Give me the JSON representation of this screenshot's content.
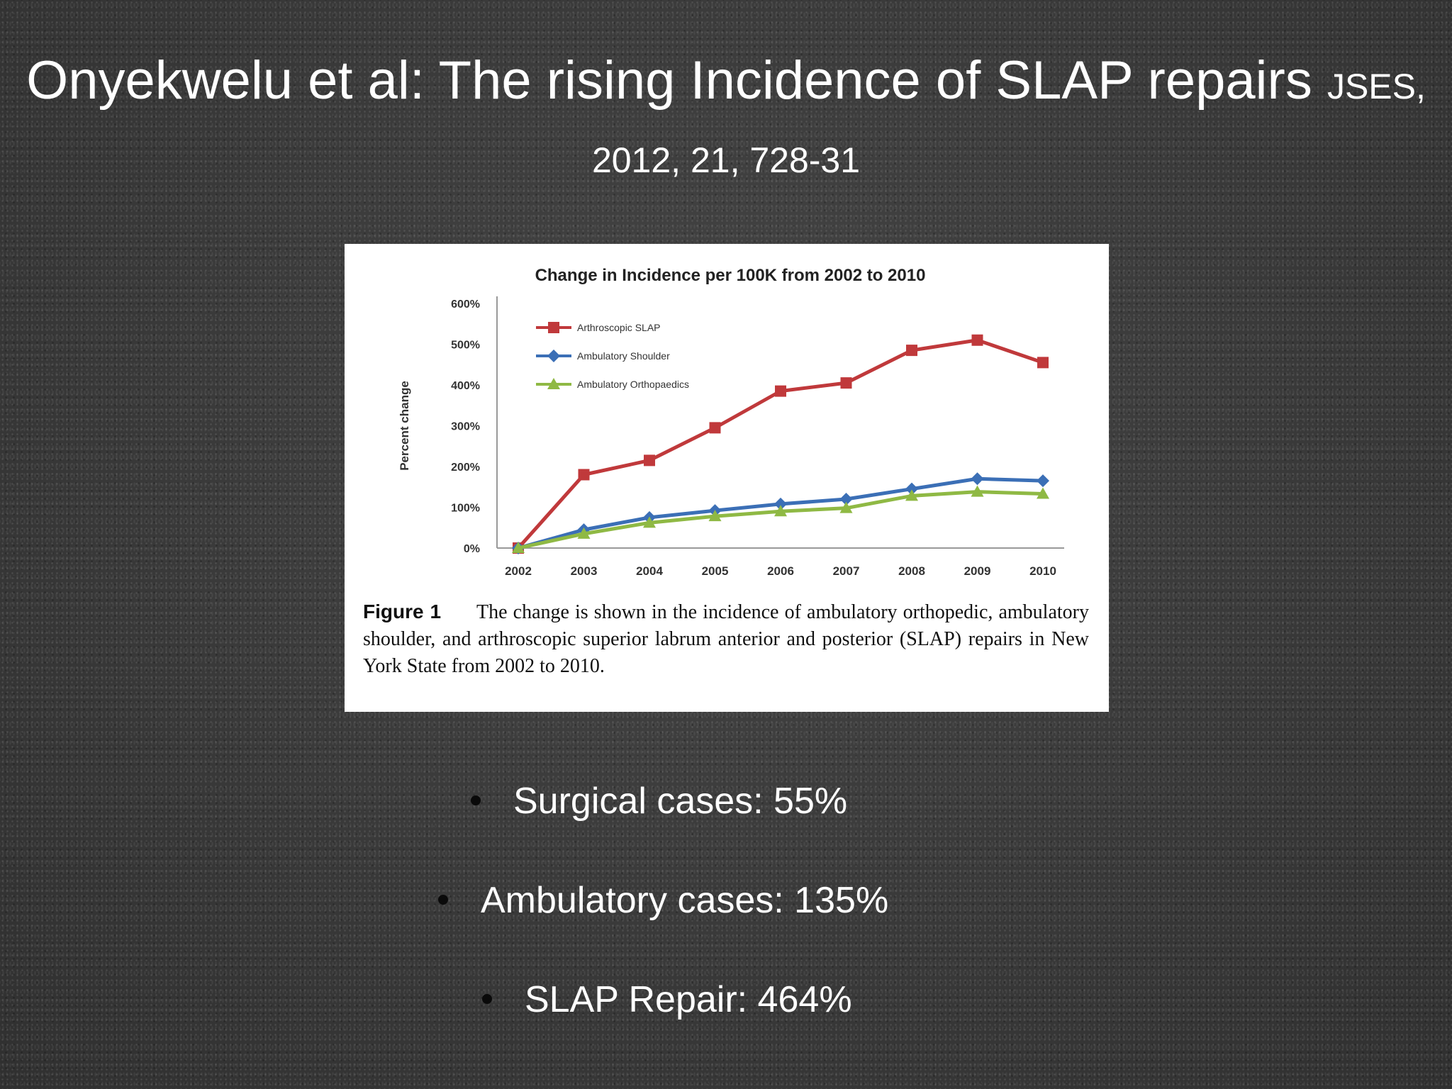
{
  "slide": {
    "title_main": "Onyekwelu et al: The rising Incidence of SLAP repairs",
    "title_citation": "JSES, 2012, 21, 728-31"
  },
  "chart_data": {
    "type": "line",
    "title": "Change in Incidence per 100K from 2002  to 2010",
    "ylabel": "Percent change",
    "xlabel": "",
    "x": [
      "2002",
      "2003",
      "2004",
      "2005",
      "2006",
      "2007",
      "2008",
      "2009",
      "2010"
    ],
    "ylim": [
      0,
      600
    ],
    "yticks": [
      "0%",
      "100%",
      "200%",
      "300%",
      "400%",
      "500%",
      "600%"
    ],
    "legend_position": "top-left",
    "grid": false,
    "series": [
      {
        "name": "Arthroscopic SLAP",
        "color": "#c0393b",
        "marker": "square",
        "values": [
          0,
          180,
          215,
          295,
          385,
          405,
          485,
          510,
          455
        ]
      },
      {
        "name": "Ambulatory Shoulder",
        "color": "#3b6fb6",
        "marker": "diamond",
        "values": [
          0,
          45,
          75,
          92,
          108,
          120,
          145,
          170,
          165
        ]
      },
      {
        "name": "Ambulatory Orthopaedics",
        "color": "#8fb944",
        "marker": "triangle",
        "values": [
          0,
          35,
          62,
          78,
          90,
          98,
          128,
          138,
          133
        ]
      }
    ]
  },
  "figure": {
    "label": "Figure 1",
    "caption": "The change is shown in the incidence of ambulatory orthopedic, ambulatory shoulder, and arthroscopic superior labrum anterior and posterior (SLAP) repairs in New York State from 2002 to 2010."
  },
  "bullets": [
    "Surgical cases: 55%",
    "Ambulatory cases: 135%",
    "SLAP Repair: 464%"
  ]
}
